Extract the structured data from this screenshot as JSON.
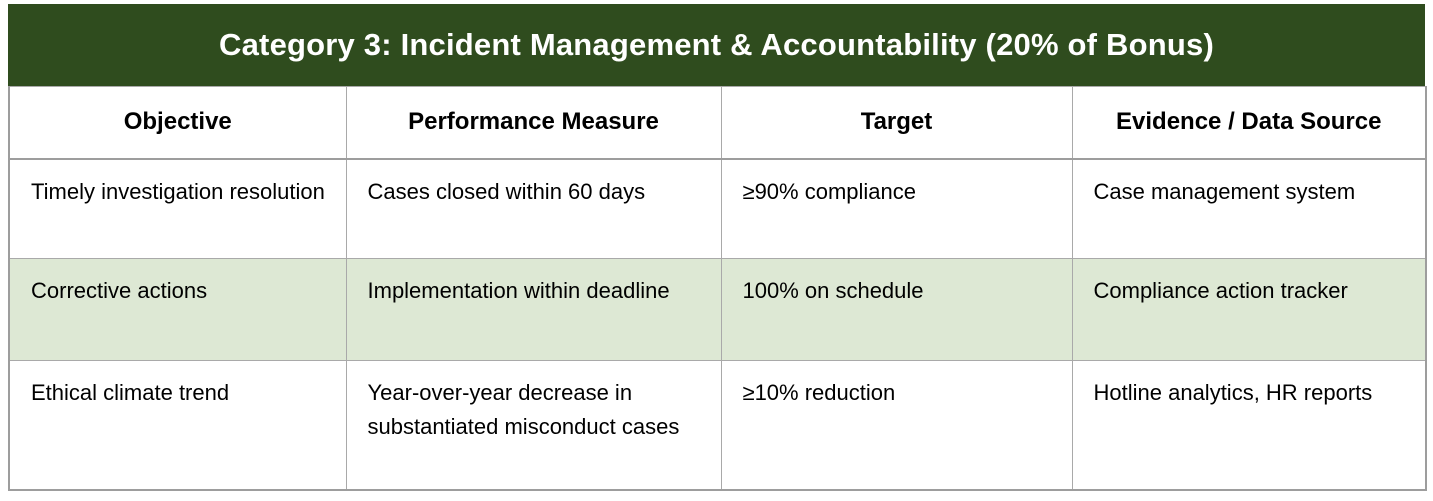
{
  "table": {
    "title": "Category 3: Incident Management & Accountability (20% of Bonus)",
    "columns": {
      "objective": "Objective",
      "measure": "Performance Measure",
      "target": "Target",
      "evidence": "Evidence / Data Source"
    },
    "rows": [
      {
        "objective": "Timely investigation resolution",
        "measure": "Cases closed within 60 days",
        "target": "≥90% compliance",
        "evidence": "Case management system",
        "highlighted": false
      },
      {
        "objective": "Corrective actions",
        "measure": "Implementation within deadline",
        "target": "100% on schedule",
        "evidence": "Compliance action tracker",
        "highlighted": true
      },
      {
        "objective": "Ethical climate trend",
        "measure": "Year-over-year decrease in substantiated misconduct cases",
        "target": "≥10% reduction",
        "evidence": "Hotline analytics, HR reports",
        "highlighted": false
      }
    ],
    "colors": {
      "title_bg": "#2f4c1e",
      "title_text": "#ffffff",
      "highlight_row_bg": "#dde8d4",
      "border": "#a9a9a9",
      "body_text": "#000000"
    }
  }
}
